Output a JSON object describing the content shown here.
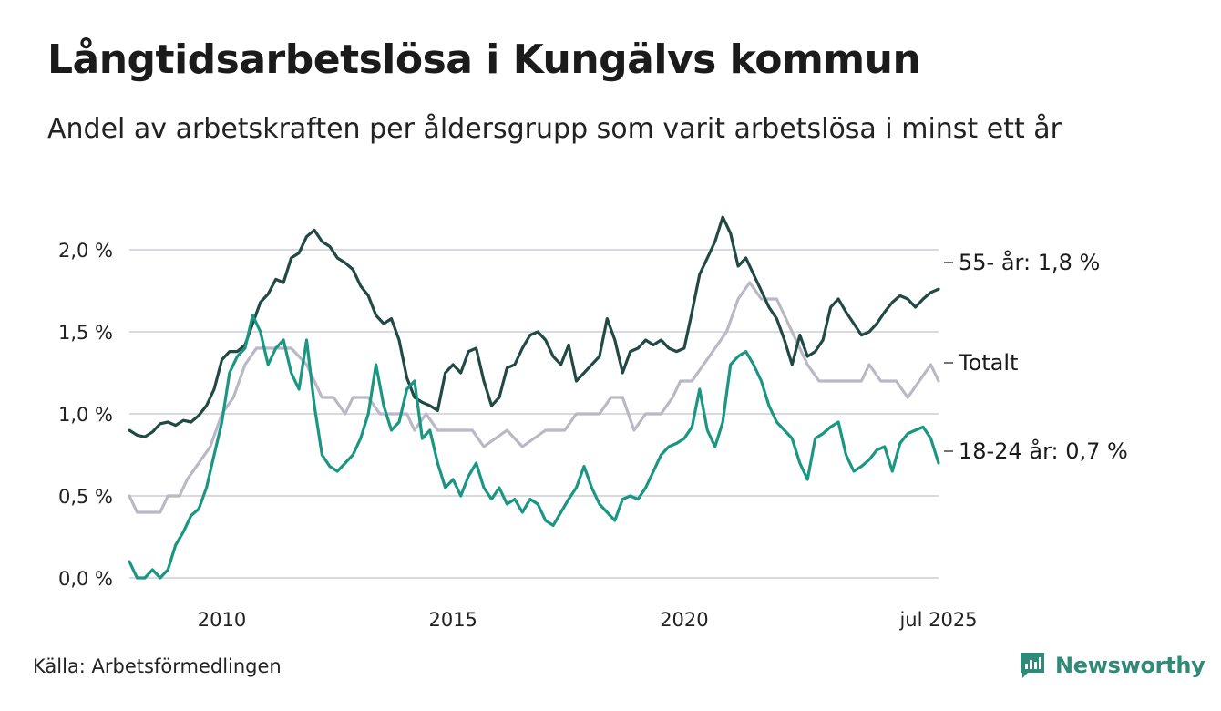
{
  "header": {
    "title": "Långtidsarbetslösa i Kungälvs kommun",
    "subtitle": "Andel av arbetskraften per åldersgrupp som varit arbetslösa i minst ett år"
  },
  "footer": {
    "source": "Källa: Arbetsförmedlingen",
    "brand": "Newsworthy"
  },
  "colors": {
    "series_55": "#214a44",
    "series_totalt": "#bbb8c6",
    "series_18_24": "#1a9683",
    "grid": "#d9d9df",
    "brand": "#2f8b78"
  },
  "chart_data": {
    "type": "line",
    "title": "Långtidsarbetslösa i Kungälvs kommun",
    "subtitle": "Andel av arbetskraften per åldersgrupp som varit arbetslösa i minst ett år",
    "xlabel": "",
    "ylabel": "",
    "x_range": [
      "2008-01",
      "2025-07"
    ],
    "ylim": [
      0,
      2.3
    ],
    "y_ticks": [
      {
        "value": 0.0,
        "label": "0,0 %"
      },
      {
        "value": 0.5,
        "label": "0,5 %"
      },
      {
        "value": 1.0,
        "label": "1,0 %"
      },
      {
        "value": 1.5,
        "label": "1,5 %"
      },
      {
        "value": 2.0,
        "label": "2,0 %"
      }
    ],
    "x_ticks": [
      {
        "date": "2010-01",
        "label": "2010"
      },
      {
        "date": "2015-01",
        "label": "2015"
      },
      {
        "date": "2020-01",
        "label": "2020"
      },
      {
        "date": "2025-07",
        "label": "jul 2025"
      }
    ],
    "grid": "horizontal",
    "legend": "end-labels",
    "series": [
      {
        "name": "Totalt",
        "end_label": "Totalt",
        "color": "#bbb8c6",
        "points": [
          [
            "2008-01",
            0.5
          ],
          [
            "2008-03",
            0.4
          ],
          [
            "2008-09",
            0.4
          ],
          [
            "2008-11",
            0.5
          ],
          [
            "2009-02",
            0.5
          ],
          [
            "2009-04",
            0.6
          ],
          [
            "2009-07",
            0.7
          ],
          [
            "2009-10",
            0.8
          ],
          [
            "2010-01",
            1.0
          ],
          [
            "2010-04",
            1.1
          ],
          [
            "2010-07",
            1.3
          ],
          [
            "2010-10",
            1.4
          ],
          [
            "2011-03",
            1.4
          ],
          [
            "2011-07",
            1.4
          ],
          [
            "2011-11",
            1.3
          ],
          [
            "2012-03",
            1.1
          ],
          [
            "2012-06",
            1.1
          ],
          [
            "2012-09",
            1.0
          ],
          [
            "2012-11",
            1.1
          ],
          [
            "2013-03",
            1.1
          ],
          [
            "2013-06",
            1.0
          ],
          [
            "2013-09",
            1.0
          ],
          [
            "2014-01",
            1.0
          ],
          [
            "2014-03",
            0.9
          ],
          [
            "2014-06",
            1.0
          ],
          [
            "2014-09",
            0.9
          ],
          [
            "2015-06",
            0.9
          ],
          [
            "2015-09",
            0.8
          ],
          [
            "2016-03",
            0.9
          ],
          [
            "2016-07",
            0.8
          ],
          [
            "2017-01",
            0.9
          ],
          [
            "2017-06",
            0.9
          ],
          [
            "2017-09",
            1.0
          ],
          [
            "2018-03",
            1.0
          ],
          [
            "2018-06",
            1.1
          ],
          [
            "2018-09",
            1.1
          ],
          [
            "2018-12",
            0.9
          ],
          [
            "2019-03",
            1.0
          ],
          [
            "2019-07",
            1.0
          ],
          [
            "2019-10",
            1.1
          ],
          [
            "2019-12",
            1.2
          ],
          [
            "2020-03",
            1.2
          ],
          [
            "2020-06",
            1.3
          ],
          [
            "2020-09",
            1.4
          ],
          [
            "2020-12",
            1.5
          ],
          [
            "2021-03",
            1.7
          ],
          [
            "2021-06",
            1.8
          ],
          [
            "2021-09",
            1.7
          ],
          [
            "2022-01",
            1.7
          ],
          [
            "2022-05",
            1.5
          ],
          [
            "2022-09",
            1.3
          ],
          [
            "2022-12",
            1.2
          ],
          [
            "2023-06",
            1.2
          ],
          [
            "2023-11",
            1.2
          ],
          [
            "2024-01",
            1.3
          ],
          [
            "2024-04",
            1.2
          ],
          [
            "2024-08",
            1.2
          ],
          [
            "2024-11",
            1.1
          ],
          [
            "2025-02",
            1.2
          ],
          [
            "2025-05",
            1.3
          ],
          [
            "2025-07",
            1.2
          ]
        ]
      },
      {
        "name": "55- år",
        "end_label": "55- år: 1,8 %",
        "color": "#214a44",
        "points": [
          [
            "2008-01",
            0.9
          ],
          [
            "2008-03",
            0.87
          ],
          [
            "2008-05",
            0.86
          ],
          [
            "2008-07",
            0.89
          ],
          [
            "2008-09",
            0.94
          ],
          [
            "2008-11",
            0.95
          ],
          [
            "2009-01",
            0.93
          ],
          [
            "2009-03",
            0.96
          ],
          [
            "2009-05",
            0.95
          ],
          [
            "2009-07",
            0.99
          ],
          [
            "2009-09",
            1.05
          ],
          [
            "2009-11",
            1.15
          ],
          [
            "2010-01",
            1.33
          ],
          [
            "2010-03",
            1.38
          ],
          [
            "2010-05",
            1.38
          ],
          [
            "2010-07",
            1.42
          ],
          [
            "2010-09",
            1.55
          ],
          [
            "2010-11",
            1.68
          ],
          [
            "2011-01",
            1.73
          ],
          [
            "2011-03",
            1.82
          ],
          [
            "2011-05",
            1.8
          ],
          [
            "2011-07",
            1.95
          ],
          [
            "2011-09",
            1.98
          ],
          [
            "2011-11",
            2.08
          ],
          [
            "2012-01",
            2.12
          ],
          [
            "2012-03",
            2.05
          ],
          [
            "2012-05",
            2.02
          ],
          [
            "2012-07",
            1.95
          ],
          [
            "2012-09",
            1.92
          ],
          [
            "2012-11",
            1.88
          ],
          [
            "2013-01",
            1.78
          ],
          [
            "2013-03",
            1.72
          ],
          [
            "2013-05",
            1.6
          ],
          [
            "2013-07",
            1.55
          ],
          [
            "2013-09",
            1.58
          ],
          [
            "2013-11",
            1.45
          ],
          [
            "2014-01",
            1.22
          ],
          [
            "2014-03",
            1.1
          ],
          [
            "2014-05",
            1.07
          ],
          [
            "2014-07",
            1.05
          ],
          [
            "2014-09",
            1.02
          ],
          [
            "2014-11",
            1.25
          ],
          [
            "2015-01",
            1.3
          ],
          [
            "2015-03",
            1.25
          ],
          [
            "2015-05",
            1.38
          ],
          [
            "2015-07",
            1.4
          ],
          [
            "2015-09",
            1.2
          ],
          [
            "2015-11",
            1.05
          ],
          [
            "2016-01",
            1.1
          ],
          [
            "2016-03",
            1.28
          ],
          [
            "2016-05",
            1.3
          ],
          [
            "2016-07",
            1.4
          ],
          [
            "2016-09",
            1.48
          ],
          [
            "2016-11",
            1.5
          ],
          [
            "2017-01",
            1.45
          ],
          [
            "2017-03",
            1.35
          ],
          [
            "2017-05",
            1.3
          ],
          [
            "2017-07",
            1.42
          ],
          [
            "2017-09",
            1.2
          ],
          [
            "2017-11",
            1.25
          ],
          [
            "2018-01",
            1.3
          ],
          [
            "2018-03",
            1.35
          ],
          [
            "2018-05",
            1.58
          ],
          [
            "2018-07",
            1.45
          ],
          [
            "2018-09",
            1.25
          ],
          [
            "2018-11",
            1.38
          ],
          [
            "2019-01",
            1.4
          ],
          [
            "2019-03",
            1.45
          ],
          [
            "2019-05",
            1.42
          ],
          [
            "2019-07",
            1.45
          ],
          [
            "2019-09",
            1.4
          ],
          [
            "2019-11",
            1.38
          ],
          [
            "2020-01",
            1.4
          ],
          [
            "2020-03",
            1.62
          ],
          [
            "2020-05",
            1.85
          ],
          [
            "2020-07",
            1.95
          ],
          [
            "2020-09",
            2.05
          ],
          [
            "2020-11",
            2.2
          ],
          [
            "2021-01",
            2.1
          ],
          [
            "2021-03",
            1.9
          ],
          [
            "2021-05",
            1.95
          ],
          [
            "2021-07",
            1.85
          ],
          [
            "2021-09",
            1.75
          ],
          [
            "2021-11",
            1.65
          ],
          [
            "2022-01",
            1.58
          ],
          [
            "2022-03",
            1.45
          ],
          [
            "2022-05",
            1.3
          ],
          [
            "2022-07",
            1.48
          ],
          [
            "2022-09",
            1.35
          ],
          [
            "2022-11",
            1.38
          ],
          [
            "2023-01",
            1.45
          ],
          [
            "2023-03",
            1.65
          ],
          [
            "2023-05",
            1.7
          ],
          [
            "2023-07",
            1.62
          ],
          [
            "2023-09",
            1.55
          ],
          [
            "2023-11",
            1.48
          ],
          [
            "2024-01",
            1.5
          ],
          [
            "2024-03",
            1.55
          ],
          [
            "2024-05",
            1.62
          ],
          [
            "2024-07",
            1.68
          ],
          [
            "2024-09",
            1.72
          ],
          [
            "2024-11",
            1.7
          ],
          [
            "2025-01",
            1.65
          ],
          [
            "2025-03",
            1.7
          ],
          [
            "2025-05",
            1.74
          ],
          [
            "2025-07",
            1.76
          ]
        ]
      },
      {
        "name": "18-24 år",
        "end_label": "18-24 år: 0,7 %",
        "color": "#1a9683",
        "points": [
          [
            "2008-01",
            0.1
          ],
          [
            "2008-03",
            0.0
          ],
          [
            "2008-05",
            0.0
          ],
          [
            "2008-07",
            0.05
          ],
          [
            "2008-09",
            0.0
          ],
          [
            "2008-11",
            0.05
          ],
          [
            "2009-01",
            0.2
          ],
          [
            "2009-03",
            0.28
          ],
          [
            "2009-05",
            0.38
          ],
          [
            "2009-07",
            0.42
          ],
          [
            "2009-09",
            0.55
          ],
          [
            "2009-11",
            0.75
          ],
          [
            "2010-01",
            0.95
          ],
          [
            "2010-03",
            1.25
          ],
          [
            "2010-05",
            1.35
          ],
          [
            "2010-07",
            1.4
          ],
          [
            "2010-09",
            1.6
          ],
          [
            "2010-11",
            1.5
          ],
          [
            "2011-01",
            1.3
          ],
          [
            "2011-03",
            1.4
          ],
          [
            "2011-05",
            1.45
          ],
          [
            "2011-07",
            1.25
          ],
          [
            "2011-09",
            1.15
          ],
          [
            "2011-11",
            1.45
          ],
          [
            "2012-01",
            1.05
          ],
          [
            "2012-03",
            0.75
          ],
          [
            "2012-05",
            0.68
          ],
          [
            "2012-07",
            0.65
          ],
          [
            "2012-09",
            0.7
          ],
          [
            "2012-11",
            0.75
          ],
          [
            "2013-01",
            0.85
          ],
          [
            "2013-03",
            1.0
          ],
          [
            "2013-05",
            1.3
          ],
          [
            "2013-07",
            1.05
          ],
          [
            "2013-09",
            0.9
          ],
          [
            "2013-11",
            0.95
          ],
          [
            "2014-01",
            1.15
          ],
          [
            "2014-03",
            1.2
          ],
          [
            "2014-05",
            0.85
          ],
          [
            "2014-07",
            0.9
          ],
          [
            "2014-09",
            0.7
          ],
          [
            "2014-11",
            0.55
          ],
          [
            "2015-01",
            0.6
          ],
          [
            "2015-03",
            0.5
          ],
          [
            "2015-05",
            0.62
          ],
          [
            "2015-07",
            0.7
          ],
          [
            "2015-09",
            0.55
          ],
          [
            "2015-11",
            0.48
          ],
          [
            "2016-01",
            0.55
          ],
          [
            "2016-03",
            0.45
          ],
          [
            "2016-05",
            0.48
          ],
          [
            "2016-07",
            0.4
          ],
          [
            "2016-09",
            0.48
          ],
          [
            "2016-11",
            0.45
          ],
          [
            "2017-01",
            0.35
          ],
          [
            "2017-03",
            0.32
          ],
          [
            "2017-05",
            0.4
          ],
          [
            "2017-07",
            0.48
          ],
          [
            "2017-09",
            0.55
          ],
          [
            "2017-11",
            0.68
          ],
          [
            "2018-01",
            0.55
          ],
          [
            "2018-03",
            0.45
          ],
          [
            "2018-05",
            0.4
          ],
          [
            "2018-07",
            0.35
          ],
          [
            "2018-09",
            0.48
          ],
          [
            "2018-11",
            0.5
          ],
          [
            "2019-01",
            0.48
          ],
          [
            "2019-03",
            0.55
          ],
          [
            "2019-05",
            0.65
          ],
          [
            "2019-07",
            0.75
          ],
          [
            "2019-09",
            0.8
          ],
          [
            "2019-11",
            0.82
          ],
          [
            "2020-01",
            0.85
          ],
          [
            "2020-03",
            0.92
          ],
          [
            "2020-05",
            1.15
          ],
          [
            "2020-07",
            0.9
          ],
          [
            "2020-09",
            0.8
          ],
          [
            "2020-11",
            0.95
          ],
          [
            "2021-01",
            1.3
          ],
          [
            "2021-03",
            1.35
          ],
          [
            "2021-05",
            1.38
          ],
          [
            "2021-07",
            1.3
          ],
          [
            "2021-09",
            1.2
          ],
          [
            "2021-11",
            1.05
          ],
          [
            "2022-01",
            0.95
          ],
          [
            "2022-03",
            0.9
          ],
          [
            "2022-05",
            0.85
          ],
          [
            "2022-07",
            0.7
          ],
          [
            "2022-09",
            0.6
          ],
          [
            "2022-11",
            0.85
          ],
          [
            "2023-01",
            0.88
          ],
          [
            "2023-03",
            0.92
          ],
          [
            "2023-05",
            0.95
          ],
          [
            "2023-07",
            0.75
          ],
          [
            "2023-09",
            0.65
          ],
          [
            "2023-11",
            0.68
          ],
          [
            "2024-01",
            0.72
          ],
          [
            "2024-03",
            0.78
          ],
          [
            "2024-05",
            0.8
          ],
          [
            "2024-07",
            0.65
          ],
          [
            "2024-09",
            0.82
          ],
          [
            "2024-11",
            0.88
          ],
          [
            "2025-01",
            0.9
          ],
          [
            "2025-03",
            0.92
          ],
          [
            "2025-05",
            0.85
          ],
          [
            "2025-07",
            0.7
          ]
        ]
      }
    ]
  }
}
